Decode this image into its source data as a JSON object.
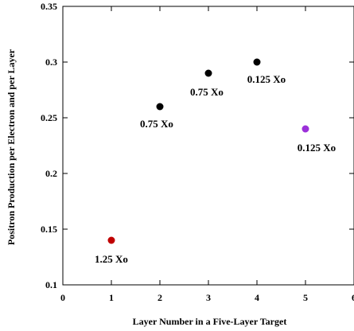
{
  "chart_data": {
    "type": "scatter",
    "title": "",
    "xlabel": "Layer Number in a Five-Layer Target",
    "ylabel": "Positron Production per Electron and per Layer",
    "xlim": [
      0,
      6
    ],
    "ylim": [
      0.1,
      0.35
    ],
    "xticks": [
      0,
      1,
      2,
      3,
      4,
      5,
      6
    ],
    "yticks": [
      0.1,
      0.15,
      0.2,
      0.25,
      0.3,
      0.35
    ],
    "xtick_labels": [
      "0",
      "1",
      "2",
      "3",
      "4",
      "5",
      "6"
    ],
    "ytick_labels": [
      "0.1",
      "0.15",
      "0.2",
      "0.25",
      "0.3",
      "0.35"
    ],
    "grid": false,
    "points": [
      {
        "x": 1,
        "y": 0.14,
        "label": "1.25 Xo",
        "color": "#c00000"
      },
      {
        "x": 2,
        "y": 0.26,
        "label": "0.75 Xo",
        "color": "#000000"
      },
      {
        "x": 3,
        "y": 0.29,
        "label": "0.75 Xo",
        "color": "#000000"
      },
      {
        "x": 4,
        "y": 0.3,
        "label": "0.125 Xo",
        "color": "#000000"
      },
      {
        "x": 5,
        "y": 0.24,
        "label": "0.125 Xo",
        "color": "#9b30d9"
      }
    ]
  }
}
